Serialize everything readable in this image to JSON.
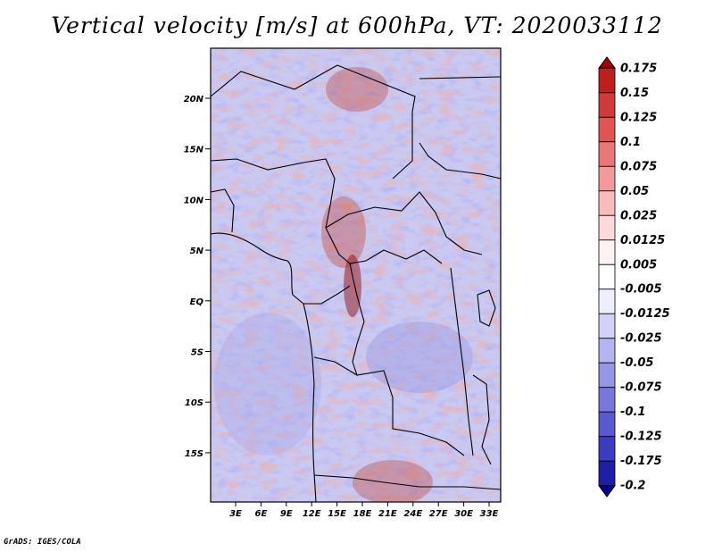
{
  "figure": {
    "title": "Vertical velocity [m/s] at 600hPa, VT: 2020033112",
    "credit": "GrADS: IGES/COLA"
  },
  "axes": {
    "lat_labels": [
      "20N",
      "15N",
      "10N",
      "5N",
      "EQ",
      "5S",
      "10S",
      "15S"
    ],
    "lon_labels": [
      "3E",
      "6E",
      "9E",
      "12E",
      "15E",
      "18E",
      "21E",
      "24E",
      "27E",
      "30E",
      "33E"
    ]
  },
  "colorbar": {
    "levels": [
      "0.175",
      "0.15",
      "0.125",
      "0.1",
      "0.075",
      "0.05",
      "0.025",
      "0.0125",
      "0.005",
      "-0.005",
      "-0.0125",
      "-0.025",
      "-0.05",
      "-0.075",
      "-0.1",
      "-0.125",
      "-0.175",
      "-0.2"
    ],
    "colors": [
      "#a00000",
      "#be1e1e",
      "#d03a3a",
      "#e05454",
      "#ea7676",
      "#f29a9a",
      "#f8bcbc",
      "#fcdada",
      "#fff2f2",
      "#ffffff",
      "#eeeeff",
      "#d2d2f8",
      "#b4b4f0",
      "#9696e6",
      "#7878dc",
      "#5a5ad0",
      "#3c3cc0",
      "#1e1ea8",
      "#00008c"
    ]
  }
}
